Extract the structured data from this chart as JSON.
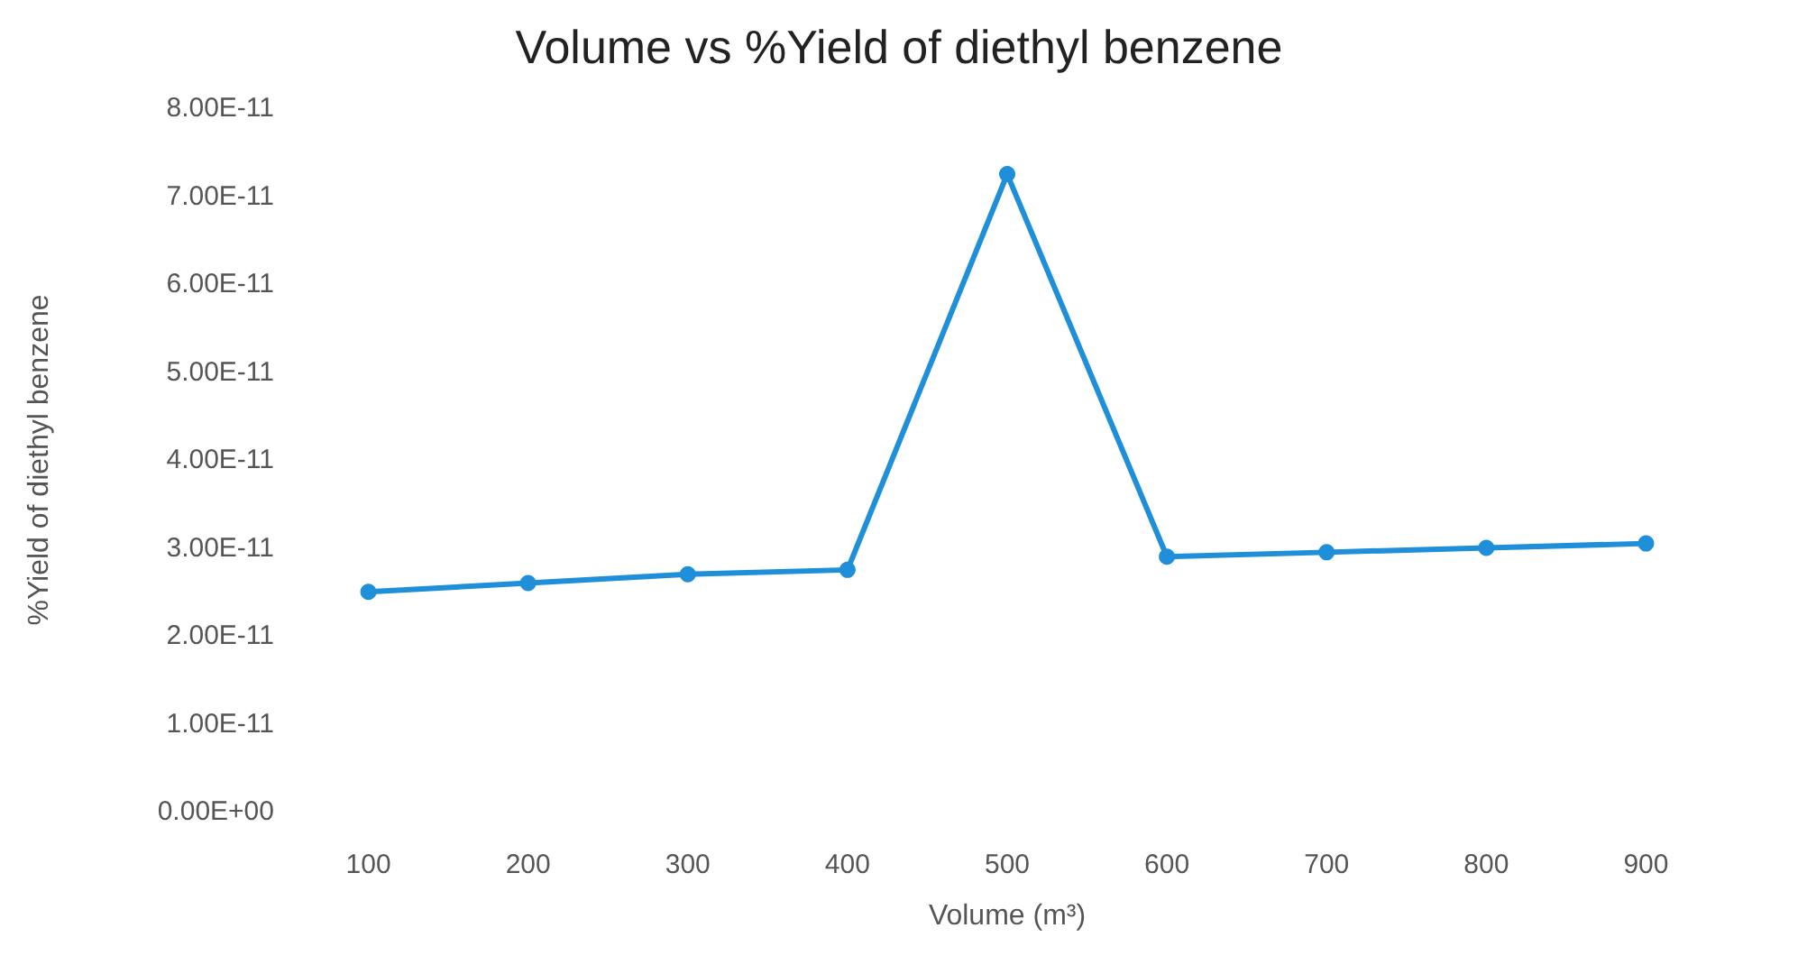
{
  "chart_data": {
    "type": "line",
    "title": "Volume vs %Yield of diethyl benzene",
    "xlabel": "Volume (m³)",
    "ylabel": "%Yield of diethyl benzene",
    "categories": [
      "100",
      "200",
      "300",
      "400",
      "500",
      "600",
      "700",
      "800",
      "900"
    ],
    "series": [
      {
        "color": "#1e8fd8",
        "values": [
          2.5e-11,
          2.6e-11,
          2.7e-11,
          2.75e-11,
          7.25e-11,
          2.9e-11,
          2.95e-11,
          3e-11,
          3.05e-11
        ]
      }
    ],
    "ylim": [
      0,
      8e-11
    ],
    "yticks": [
      {
        "value": 0,
        "label": "0.00E+00"
      },
      {
        "value": 1e-11,
        "label": "1.00E-11"
      },
      {
        "value": 2e-11,
        "label": "2.00E-11"
      },
      {
        "value": 3e-11,
        "label": "3.00E-11"
      },
      {
        "value": 4e-11,
        "label": "4.00E-11"
      },
      {
        "value": 5e-11,
        "label": "5.00E-11"
      },
      {
        "value": 6e-11,
        "label": "6.00E-11"
      },
      {
        "value": 7e-11,
        "label": "7.00E-11"
      },
      {
        "value": 8e-11,
        "label": "8.00E-11"
      }
    ],
    "marker": "circle",
    "line_style": "solid",
    "grid": false
  }
}
